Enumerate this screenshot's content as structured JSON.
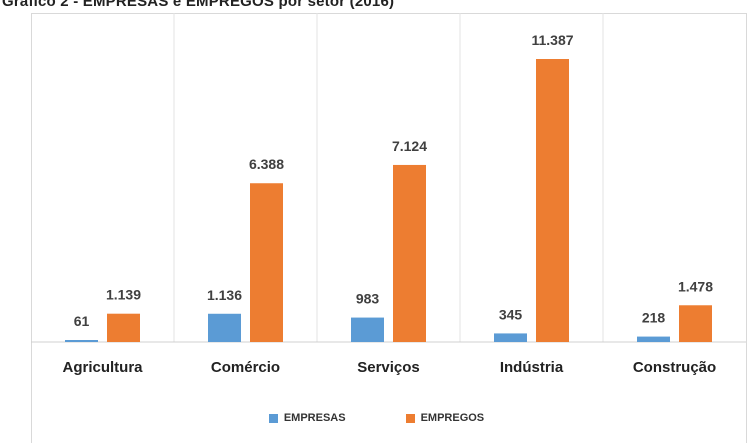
{
  "chart_data": {
    "type": "bar",
    "title": "Gráfico 2 - EMPRESAS e EMPREGOS por setor (2016)",
    "categories": [
      "Agricultura",
      "Comércio",
      "Serviços",
      "Indústria",
      "Construção"
    ],
    "series": [
      {
        "name": "EMPRESAS",
        "values": [
          61,
          1136,
          983,
          345,
          218
        ],
        "labels": [
          "61",
          "1.136",
          "983",
          "345",
          "218"
        ],
        "color": "#5b9bd5"
      },
      {
        "name": "EMPREGOS",
        "values": [
          1139,
          6388,
          7124,
          11387,
          1478
        ],
        "labels": [
          "1.139",
          "6.388",
          "7.124",
          "11.387",
          "1.478"
        ],
        "color": "#ed7d31"
      }
    ],
    "ylim": [
      0,
      12000
    ],
    "grid": false,
    "legend_position": "bottom"
  }
}
